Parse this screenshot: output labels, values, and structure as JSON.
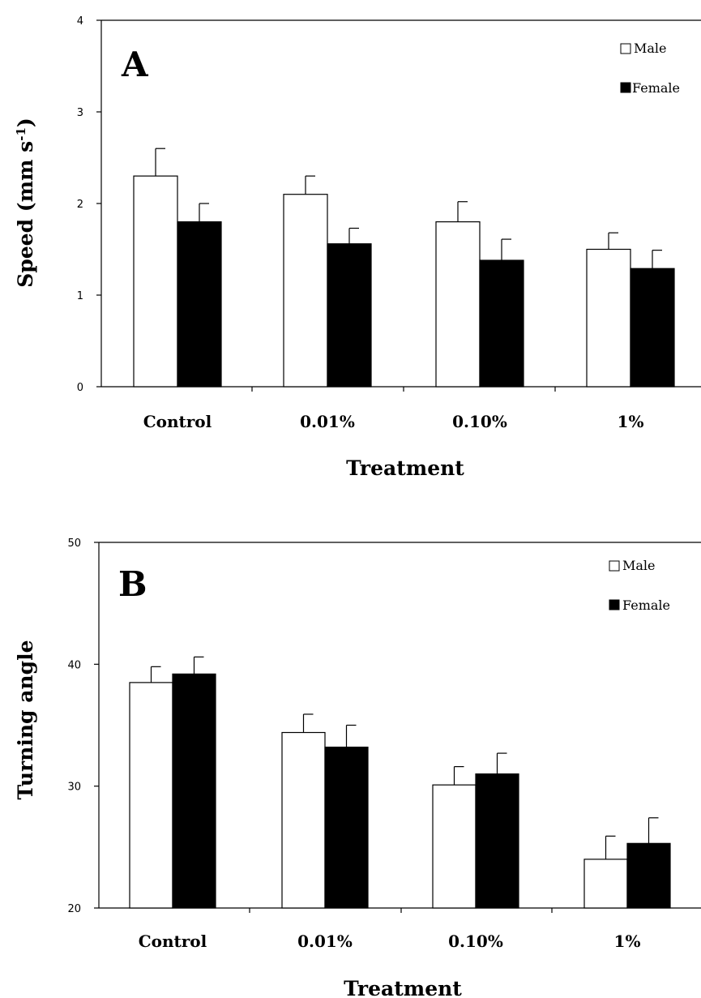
{
  "chart_data": [
    {
      "type": "bar",
      "panel_label": "A",
      "categories": [
        "Control",
        "0.01%",
        "0.10%",
        "1%"
      ],
      "series": [
        {
          "name": "Male",
          "values": [
            2.3,
            2.1,
            1.8,
            1.5
          ],
          "errors": [
            0.3,
            0.2,
            0.22,
            0.18
          ],
          "color": "#ffffff"
        },
        {
          "name": "Female",
          "values": [
            1.8,
            1.56,
            1.38,
            1.29
          ],
          "errors": [
            0.2,
            0.17,
            0.23,
            0.2
          ],
          "color": "#000000"
        }
      ],
      "xlabel": "Treatment",
      "ylabel_main": "Speed (mm s",
      "ylabel_sup": "-1",
      "ylabel_end": ")",
      "ylim": [
        0,
        4
      ],
      "yticks": [
        "0",
        "1",
        "2",
        "3",
        "4"
      ],
      "legend_position": "top-right"
    },
    {
      "type": "bar",
      "panel_label": "B",
      "categories": [
        "Control",
        "0.01%",
        "0.10%",
        "1%"
      ],
      "series": [
        {
          "name": "Male",
          "values": [
            38.5,
            34.4,
            30.1,
            24.0
          ],
          "errors": [
            1.3,
            1.5,
            1.5,
            1.9
          ],
          "color": "#ffffff"
        },
        {
          "name": "Female",
          "values": [
            39.2,
            33.2,
            31.0,
            25.3
          ],
          "errors": [
            1.4,
            1.8,
            1.7,
            2.1
          ],
          "color": "#000000"
        }
      ],
      "xlabel": "Treatment",
      "ylabel": "Turning angle",
      "ylim": [
        20,
        50
      ],
      "yticks": [
        "20",
        "30",
        "40",
        "50"
      ],
      "legend_position": "top-right"
    }
  ]
}
